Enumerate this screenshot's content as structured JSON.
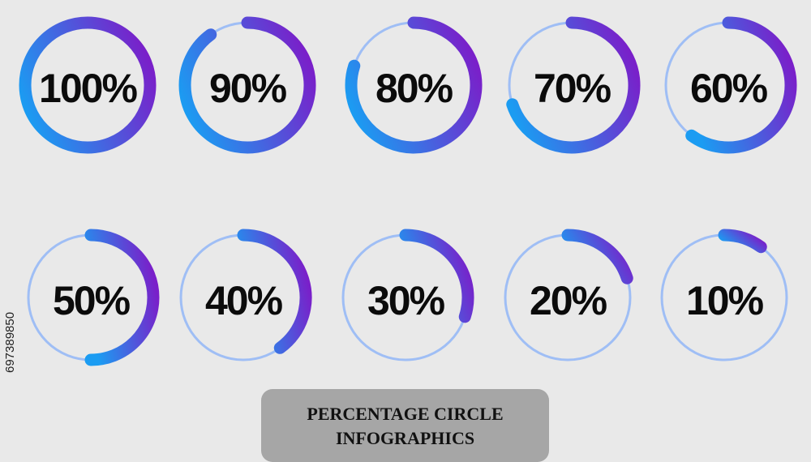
{
  "chart_data": {
    "type": "donut",
    "title": "PERCENTAGE CIRCLE INFOGRAPHICS",
    "values": [
      100,
      90,
      80,
      70,
      60,
      50,
      40,
      30,
      20,
      10
    ],
    "value_labels": [
      "100%",
      "90%",
      "80%",
      "70%",
      "60%",
      "50%",
      "40%",
      "30%",
      "20%",
      "10%"
    ],
    "ylim": [
      0,
      100
    ],
    "colors": [
      "#1b9cf2",
      "#7a1fc9"
    ],
    "track_color": "#9fbef5"
  },
  "side_text": "697389850"
}
